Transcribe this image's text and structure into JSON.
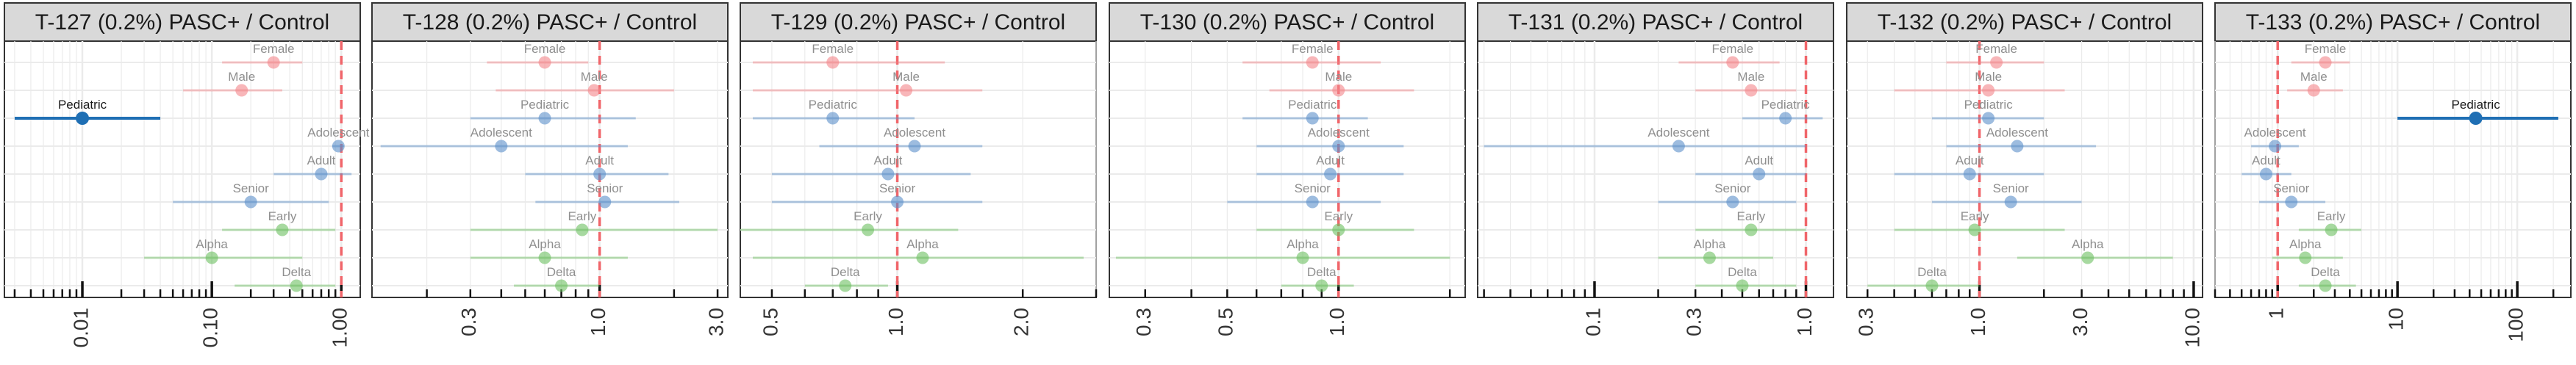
{
  "colors": {
    "strip_fill": "#d9d9d9",
    "strip_border": "#333333",
    "grid": "#ebebeb",
    "reference_line": "#f0656a",
    "female_male": "#f4868a",
    "pediatric_adolescent_adult_senior": "#5b8fc9",
    "early_alpha_delta": "#6dbf61",
    "highlight": "#1f6fb4"
  },
  "chart_data": [
    {
      "type": "scatter",
      "title": "T-127 (0.2%) PASC+ / Control",
      "scale": "log",
      "xlim": [
        0.0025,
        1.4
      ],
      "ticks": [
        "0.01",
        "0.10",
        "1.00"
      ],
      "reference_x": 1,
      "rows": [
        {
          "label": "Female",
          "group": "sex",
          "x": 0.3,
          "lo": 0.12,
          "hi": 0.5,
          "highlight": false
        },
        {
          "label": "Male",
          "group": "sex",
          "x": 0.17,
          "lo": 0.06,
          "hi": 0.35,
          "highlight": false
        },
        {
          "label": "Pediatric",
          "group": "age",
          "x": 0.01,
          "lo": 0.003,
          "hi": 0.04,
          "highlight": true
        },
        {
          "label": "Adolescent",
          "group": "age",
          "x": 0.95,
          "lo": 0.85,
          "hi": 1.05,
          "highlight": false
        },
        {
          "label": "Adult",
          "group": "age",
          "x": 0.7,
          "lo": 0.3,
          "hi": 1.2,
          "highlight": false
        },
        {
          "label": "Senior",
          "group": "age",
          "x": 0.2,
          "lo": 0.05,
          "hi": 0.8,
          "highlight": false
        },
        {
          "label": "Early",
          "group": "variant",
          "x": 0.35,
          "lo": 0.12,
          "hi": 0.9,
          "highlight": false
        },
        {
          "label": "Alpha",
          "group": "variant",
          "x": 0.1,
          "lo": 0.03,
          "hi": 0.5,
          "highlight": false
        },
        {
          "label": "Delta",
          "group": "variant",
          "x": 0.45,
          "lo": 0.15,
          "hi": 0.9,
          "highlight": false
        }
      ]
    },
    {
      "type": "scatter",
      "title": "T-128 (0.2%) PASC+ / Control",
      "scale": "log",
      "xlim": [
        0.12,
        3.3
      ],
      "ticks": [
        "0.3",
        "1.0",
        "3.0"
      ],
      "reference_x": 1,
      "rows": [
        {
          "label": "Female",
          "group": "sex",
          "x": 0.6,
          "lo": 0.35,
          "hi": 0.9,
          "highlight": false
        },
        {
          "label": "Male",
          "group": "sex",
          "x": 0.95,
          "lo": 0.38,
          "hi": 2.0,
          "highlight": false
        },
        {
          "label": "Pediatric",
          "group": "age",
          "x": 0.6,
          "lo": 0.3,
          "hi": 1.4,
          "highlight": false
        },
        {
          "label": "Adolescent",
          "group": "age",
          "x": 0.4,
          "lo": 0.13,
          "hi": 1.3,
          "highlight": false
        },
        {
          "label": "Adult",
          "group": "age",
          "x": 1.0,
          "lo": 0.5,
          "hi": 1.9,
          "highlight": false
        },
        {
          "label": "Senior",
          "group": "age",
          "x": 1.05,
          "lo": 0.55,
          "hi": 2.1,
          "highlight": false
        },
        {
          "label": "Early",
          "group": "variant",
          "x": 0.85,
          "lo": 0.3,
          "hi": 3.0,
          "highlight": false
        },
        {
          "label": "Alpha",
          "group": "variant",
          "x": 0.6,
          "lo": 0.3,
          "hi": 1.3,
          "highlight": false
        },
        {
          "label": "Delta",
          "group": "variant",
          "x": 0.7,
          "lo": 0.45,
          "hi": 1.0,
          "highlight": false
        }
      ]
    },
    {
      "type": "scatter",
      "title": "T-129 (0.2%) PASC+ / Control",
      "scale": "log",
      "xlim": [
        0.42,
        3.0
      ],
      "ticks": [
        "0.5",
        "1.0",
        "2.0"
      ],
      "reference_x": 1,
      "rows": [
        {
          "label": "Female",
          "group": "sex",
          "x": 0.7,
          "lo": 0.45,
          "hi": 1.3,
          "highlight": false
        },
        {
          "label": "Male",
          "group": "sex",
          "x": 1.05,
          "lo": 0.45,
          "hi": 1.6,
          "highlight": false
        },
        {
          "label": "Pediatric",
          "group": "age",
          "x": 0.7,
          "lo": 0.45,
          "hi": 1.1,
          "highlight": false
        },
        {
          "label": "Adolescent",
          "group": "age",
          "x": 1.1,
          "lo": 0.65,
          "hi": 1.6,
          "highlight": false
        },
        {
          "label": "Adult",
          "group": "age",
          "x": 0.95,
          "lo": 0.5,
          "hi": 1.5,
          "highlight": false
        },
        {
          "label": "Senior",
          "group": "age",
          "x": 1.0,
          "lo": 0.5,
          "hi": 1.6,
          "highlight": false
        },
        {
          "label": "Early",
          "group": "variant",
          "x": 0.85,
          "lo": 0.42,
          "hi": 1.4,
          "highlight": false
        },
        {
          "label": "Alpha",
          "group": "variant",
          "x": 1.15,
          "lo": 0.45,
          "hi": 2.8,
          "highlight": false
        },
        {
          "label": "Delta",
          "group": "variant",
          "x": 0.75,
          "lo": 0.6,
          "hi": 0.95,
          "highlight": false
        }
      ]
    },
    {
      "type": "scatter",
      "title": "T-130 (0.2%) PASC+ / Control",
      "scale": "log",
      "xlim": [
        0.24,
        2.2
      ],
      "ticks": [
        "0.3",
        "0.5",
        "1.0"
      ],
      "reference_x": 1,
      "rows": [
        {
          "label": "Female",
          "group": "sex",
          "x": 0.85,
          "lo": 0.55,
          "hi": 1.3,
          "highlight": false
        },
        {
          "label": "Male",
          "group": "sex",
          "x": 1.0,
          "lo": 0.65,
          "hi": 1.6,
          "highlight": false
        },
        {
          "label": "Pediatric",
          "group": "age",
          "x": 0.85,
          "lo": 0.55,
          "hi": 1.2,
          "highlight": false
        },
        {
          "label": "Adolescent",
          "group": "age",
          "x": 1.0,
          "lo": 0.6,
          "hi": 1.5,
          "highlight": false
        },
        {
          "label": "Adult",
          "group": "age",
          "x": 0.95,
          "lo": 0.6,
          "hi": 1.5,
          "highlight": false
        },
        {
          "label": "Senior",
          "group": "age",
          "x": 0.85,
          "lo": 0.5,
          "hi": 1.3,
          "highlight": false
        },
        {
          "label": "Early",
          "group": "variant",
          "x": 1.0,
          "lo": 0.6,
          "hi": 1.6,
          "highlight": false
        },
        {
          "label": "Alpha",
          "group": "variant",
          "x": 0.8,
          "lo": 0.25,
          "hi": 2.0,
          "highlight": false
        },
        {
          "label": "Delta",
          "group": "variant",
          "x": 0.9,
          "lo": 0.7,
          "hi": 1.1,
          "highlight": false
        }
      ]
    },
    {
      "type": "scatter",
      "title": "T-131 (0.2%) PASC+ / Control",
      "scale": "log",
      "xlim": [
        0.028,
        1.35
      ],
      "ticks": [
        "0.1",
        "0.3",
        "1.0"
      ],
      "reference_x": 1,
      "rows": [
        {
          "label": "Female",
          "group": "sex",
          "x": 0.45,
          "lo": 0.25,
          "hi": 0.75,
          "highlight": false
        },
        {
          "label": "Male",
          "group": "sex",
          "x": 0.55,
          "lo": 0.3,
          "hi": 0.9,
          "highlight": false
        },
        {
          "label": "Pediatric",
          "group": "age",
          "x": 0.8,
          "lo": 0.5,
          "hi": 1.2,
          "highlight": false
        },
        {
          "label": "Adolescent",
          "group": "age",
          "x": 0.25,
          "lo": 0.03,
          "hi": 1.0,
          "highlight": false
        },
        {
          "label": "Adult",
          "group": "age",
          "x": 0.6,
          "lo": 0.3,
          "hi": 1.0,
          "highlight": false
        },
        {
          "label": "Senior",
          "group": "age",
          "x": 0.45,
          "lo": 0.2,
          "hi": 0.9,
          "highlight": false
        },
        {
          "label": "Early",
          "group": "variant",
          "x": 0.55,
          "lo": 0.3,
          "hi": 1.0,
          "highlight": false
        },
        {
          "label": "Alpha",
          "group": "variant",
          "x": 0.35,
          "lo": 0.2,
          "hi": 0.7,
          "highlight": false
        },
        {
          "label": "Delta",
          "group": "variant",
          "x": 0.5,
          "lo": 0.3,
          "hi": 0.9,
          "highlight": false
        }
      ]
    },
    {
      "type": "scatter",
      "title": "T-132 (0.2%) PASC+ / Control",
      "scale": "log",
      "xlim": [
        0.24,
        11.0
      ],
      "ticks": [
        "0.3",
        "1.0",
        "3.0",
        "10.0"
      ],
      "reference_x": 1,
      "rows": [
        {
          "label": "Female",
          "group": "sex",
          "x": 1.2,
          "lo": 0.7,
          "hi": 2.0,
          "highlight": false
        },
        {
          "label": "Male",
          "group": "sex",
          "x": 1.1,
          "lo": 0.4,
          "hi": 2.5,
          "highlight": false
        },
        {
          "label": "Pediatric",
          "group": "age",
          "x": 1.1,
          "lo": 0.6,
          "hi": 2.0,
          "highlight": false
        },
        {
          "label": "Adolescent",
          "group": "age",
          "x": 1.5,
          "lo": 0.7,
          "hi": 3.5,
          "highlight": false
        },
        {
          "label": "Adult",
          "group": "age",
          "x": 0.9,
          "lo": 0.4,
          "hi": 2.0,
          "highlight": false
        },
        {
          "label": "Senior",
          "group": "age",
          "x": 1.4,
          "lo": 0.6,
          "hi": 3.0,
          "highlight": false
        },
        {
          "label": "Early",
          "group": "variant",
          "x": 0.95,
          "lo": 0.4,
          "hi": 2.5,
          "highlight": false
        },
        {
          "label": "Alpha",
          "group": "variant",
          "x": 3.2,
          "lo": 1.5,
          "hi": 8.0,
          "highlight": false
        },
        {
          "label": "Delta",
          "group": "variant",
          "x": 0.6,
          "lo": 0.3,
          "hi": 1.0,
          "highlight": false
        }
      ]
    },
    {
      "type": "scatter",
      "title": "T-133 (0.2%) PASC+ / Control",
      "scale": "log",
      "xlim": [
        0.3,
        280
      ],
      "ticks": [
        "1",
        "10",
        "100"
      ],
      "reference_x": 1,
      "rows": [
        {
          "label": "Female",
          "group": "sex",
          "x": 2.5,
          "lo": 1.3,
          "hi": 4.0,
          "highlight": false
        },
        {
          "label": "Male",
          "group": "sex",
          "x": 2.0,
          "lo": 1.2,
          "hi": 3.5,
          "highlight": false
        },
        {
          "label": "Pediatric",
          "group": "age",
          "x": 45,
          "lo": 10,
          "hi": 220,
          "highlight": true
        },
        {
          "label": "Adolescent",
          "group": "age",
          "x": 0.95,
          "lo": 0.6,
          "hi": 1.5,
          "highlight": false
        },
        {
          "label": "Adult",
          "group": "age",
          "x": 0.8,
          "lo": 0.5,
          "hi": 1.3,
          "highlight": false
        },
        {
          "label": "Senior",
          "group": "age",
          "x": 1.3,
          "lo": 0.7,
          "hi": 2.5,
          "highlight": false
        },
        {
          "label": "Early",
          "group": "variant",
          "x": 2.8,
          "lo": 1.5,
          "hi": 5.0,
          "highlight": false
        },
        {
          "label": "Alpha",
          "group": "variant",
          "x": 1.7,
          "lo": 0.9,
          "hi": 3.5,
          "highlight": false
        },
        {
          "label": "Delta",
          "group": "variant",
          "x": 2.5,
          "lo": 1.5,
          "hi": 4.5,
          "highlight": false
        }
      ]
    }
  ]
}
